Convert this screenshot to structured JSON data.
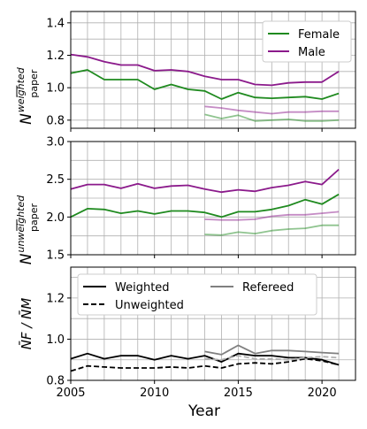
{
  "chart_data": [
    {
      "type": "line",
      "panel": "top",
      "ylabel": "N̄ paper weighted",
      "ylabel_main": "N",
      "ylabel_sup": "weighted",
      "ylabel_sub": "paper",
      "xlim": [
        2005,
        2022
      ],
      "ylim": [
        0.75,
        1.47
      ],
      "yticks": [
        0.8,
        1.0,
        1.2,
        1.4
      ],
      "ytick_labels": [
        "0.8",
        "1.0",
        "1.2",
        "1.4"
      ],
      "grid": true,
      "legend": {
        "placement": "top-right",
        "entries": [
          {
            "name": "Female",
            "color": "#1f8a1f"
          },
          {
            "name": "Male",
            "color": "#8b1a8b"
          }
        ]
      },
      "series": [
        {
          "name": "Female",
          "color": "#1f8a1f",
          "opacity": 1.0,
          "x": [
            2005,
            2006,
            2007,
            2008,
            2009,
            2010,
            2011,
            2012,
            2013,
            2014,
            2015,
            2016,
            2017,
            2018,
            2019,
            2020,
            2021
          ],
          "values": [
            1.09,
            1.11,
            1.05,
            1.05,
            1.05,
            0.99,
            1.02,
            0.99,
            0.98,
            0.93,
            0.97,
            0.94,
            0.935,
            0.94,
            0.945,
            0.93,
            0.965
          ]
        },
        {
          "name": "Male",
          "color": "#8b1a8b",
          "opacity": 1.0,
          "x": [
            2005,
            2006,
            2007,
            2008,
            2009,
            2010,
            2011,
            2012,
            2013,
            2014,
            2015,
            2016,
            2017,
            2018,
            2019,
            2020,
            2021
          ],
          "values": [
            1.205,
            1.19,
            1.16,
            1.14,
            1.14,
            1.105,
            1.11,
            1.1,
            1.07,
            1.05,
            1.05,
            1.02,
            1.015,
            1.03,
            1.035,
            1.035,
            1.1
          ]
        },
        {
          "name": "",
          "color": "#1f8a1f",
          "opacity": 0.5,
          "x": [
            2013,
            2014,
            2015,
            2016,
            2017,
            2018,
            2019,
            2020,
            2021
          ],
          "values": [
            0.835,
            0.81,
            0.83,
            0.795,
            0.8,
            0.805,
            0.795,
            0.795,
            0.8
          ]
        },
        {
          "name": "",
          "color": "#8b1a8b",
          "opacity": 0.5,
          "x": [
            2013,
            2014,
            2015,
            2016,
            2017,
            2018,
            2019,
            2020,
            2021
          ],
          "values": [
            0.885,
            0.875,
            0.86,
            0.85,
            0.84,
            0.85,
            0.85,
            0.855,
            0.855
          ]
        }
      ]
    },
    {
      "type": "line",
      "panel": "middle",
      "ylabel": "N̄ paper unweighted",
      "ylabel_main": "N",
      "ylabel_sup": "unweighted",
      "ylabel_sub": "paper",
      "xlim": [
        2005,
        2022
      ],
      "ylim": [
        1.5,
        3.0
      ],
      "yticks": [
        1.5,
        2.0,
        2.5,
        3.0
      ],
      "ytick_labels": [
        "1.5",
        "2.0",
        "2.5",
        "3.0"
      ],
      "grid": true,
      "series": [
        {
          "name": "",
          "color": "#1f8a1f",
          "opacity": 1.0,
          "x": [
            2005,
            2006,
            2007,
            2008,
            2009,
            2010,
            2011,
            2012,
            2013,
            2014,
            2015,
            2016,
            2017,
            2018,
            2019,
            2020,
            2021
          ],
          "values": [
            2.0,
            2.11,
            2.1,
            2.05,
            2.08,
            2.04,
            2.08,
            2.08,
            2.06,
            2.0,
            2.07,
            2.07,
            2.1,
            2.15,
            2.23,
            2.17,
            2.3
          ]
        },
        {
          "name": "",
          "color": "#8b1a8b",
          "opacity": 1.0,
          "x": [
            2005,
            2006,
            2007,
            2008,
            2009,
            2010,
            2011,
            2012,
            2013,
            2014,
            2015,
            2016,
            2017,
            2018,
            2019,
            2020,
            2021
          ],
          "values": [
            2.37,
            2.43,
            2.43,
            2.38,
            2.44,
            2.38,
            2.41,
            2.42,
            2.37,
            2.33,
            2.36,
            2.34,
            2.39,
            2.42,
            2.47,
            2.43,
            2.63
          ]
        },
        {
          "name": "",
          "color": "#1f8a1f",
          "opacity": 0.5,
          "x": [
            2013,
            2014,
            2015,
            2016,
            2017,
            2018,
            2019,
            2020,
            2021
          ],
          "values": [
            1.77,
            1.76,
            1.8,
            1.78,
            1.82,
            1.84,
            1.85,
            1.89,
            1.89
          ]
        },
        {
          "name": "",
          "color": "#8b1a8b",
          "opacity": 0.5,
          "x": [
            2013,
            2014,
            2015,
            2016,
            2017,
            2018,
            2019,
            2020,
            2021
          ],
          "values": [
            1.97,
            1.96,
            1.96,
            1.97,
            2.01,
            2.03,
            2.03,
            2.05,
            2.07
          ]
        }
      ]
    },
    {
      "type": "line",
      "panel": "bottom",
      "ylabel": "N̄F / N̄M",
      "xlabel": "Year",
      "xlim": [
        2005,
        2022
      ],
      "ylim": [
        0.8,
        1.35
      ],
      "yticks": [
        0.8,
        1.0,
        1.2
      ],
      "ytick_labels": [
        "0.8",
        "1.0",
        "1.2"
      ],
      "xticks": [
        2005,
        2010,
        2015,
        2020
      ],
      "xtick_labels": [
        "2005",
        "2010",
        "2015",
        "2020"
      ],
      "grid": true,
      "legend": {
        "placement": "top",
        "entries": [
          {
            "name": "Weighted",
            "color": "#000000",
            "style": "solid"
          },
          {
            "name": "Unweighted",
            "color": "#000000",
            "style": "dashed"
          },
          {
            "name": "Refereed",
            "color": "#808080",
            "style": "solid"
          }
        ]
      },
      "series": [
        {
          "name": "Weighted",
          "color": "#000000",
          "opacity": 1.0,
          "dashed": false,
          "x": [
            2005,
            2006,
            2007,
            2008,
            2009,
            2010,
            2011,
            2012,
            2013,
            2014,
            2015,
            2016,
            2017,
            2018,
            2019,
            2020,
            2021
          ],
          "values": [
            0.905,
            0.93,
            0.905,
            0.92,
            0.92,
            0.9,
            0.92,
            0.905,
            0.92,
            0.89,
            0.93,
            0.92,
            0.92,
            0.91,
            0.91,
            0.9,
            0.875
          ]
        },
        {
          "name": "Unweighted",
          "color": "#000000",
          "opacity": 1.0,
          "dashed": true,
          "x": [
            2005,
            2006,
            2007,
            2008,
            2009,
            2010,
            2011,
            2012,
            2013,
            2014,
            2015,
            2016,
            2017,
            2018,
            2019,
            2020,
            2021
          ],
          "values": [
            0.845,
            0.87,
            0.865,
            0.86,
            0.86,
            0.86,
            0.865,
            0.86,
            0.87,
            0.86,
            0.88,
            0.885,
            0.88,
            0.89,
            0.905,
            0.895,
            0.875
          ]
        },
        {
          "name": "Refereed",
          "color": "#808080",
          "opacity": 1.0,
          "dashed": false,
          "x": [
            2013,
            2014,
            2015,
            2016,
            2017,
            2018,
            2019,
            2020,
            2021
          ],
          "values": [
            0.94,
            0.925,
            0.97,
            0.93,
            0.945,
            0.945,
            0.94,
            0.935,
            0.93
          ]
        },
        {
          "name": "",
          "color": "#b0b0b0",
          "opacity": 1.0,
          "dashed": true,
          "x": [
            2013,
            2014,
            2015,
            2016,
            2017,
            2018,
            2019,
            2020,
            2021
          ],
          "values": [
            0.905,
            0.9,
            0.92,
            0.905,
            0.905,
            0.9,
            0.91,
            0.915,
            0.91
          ]
        }
      ]
    }
  ]
}
